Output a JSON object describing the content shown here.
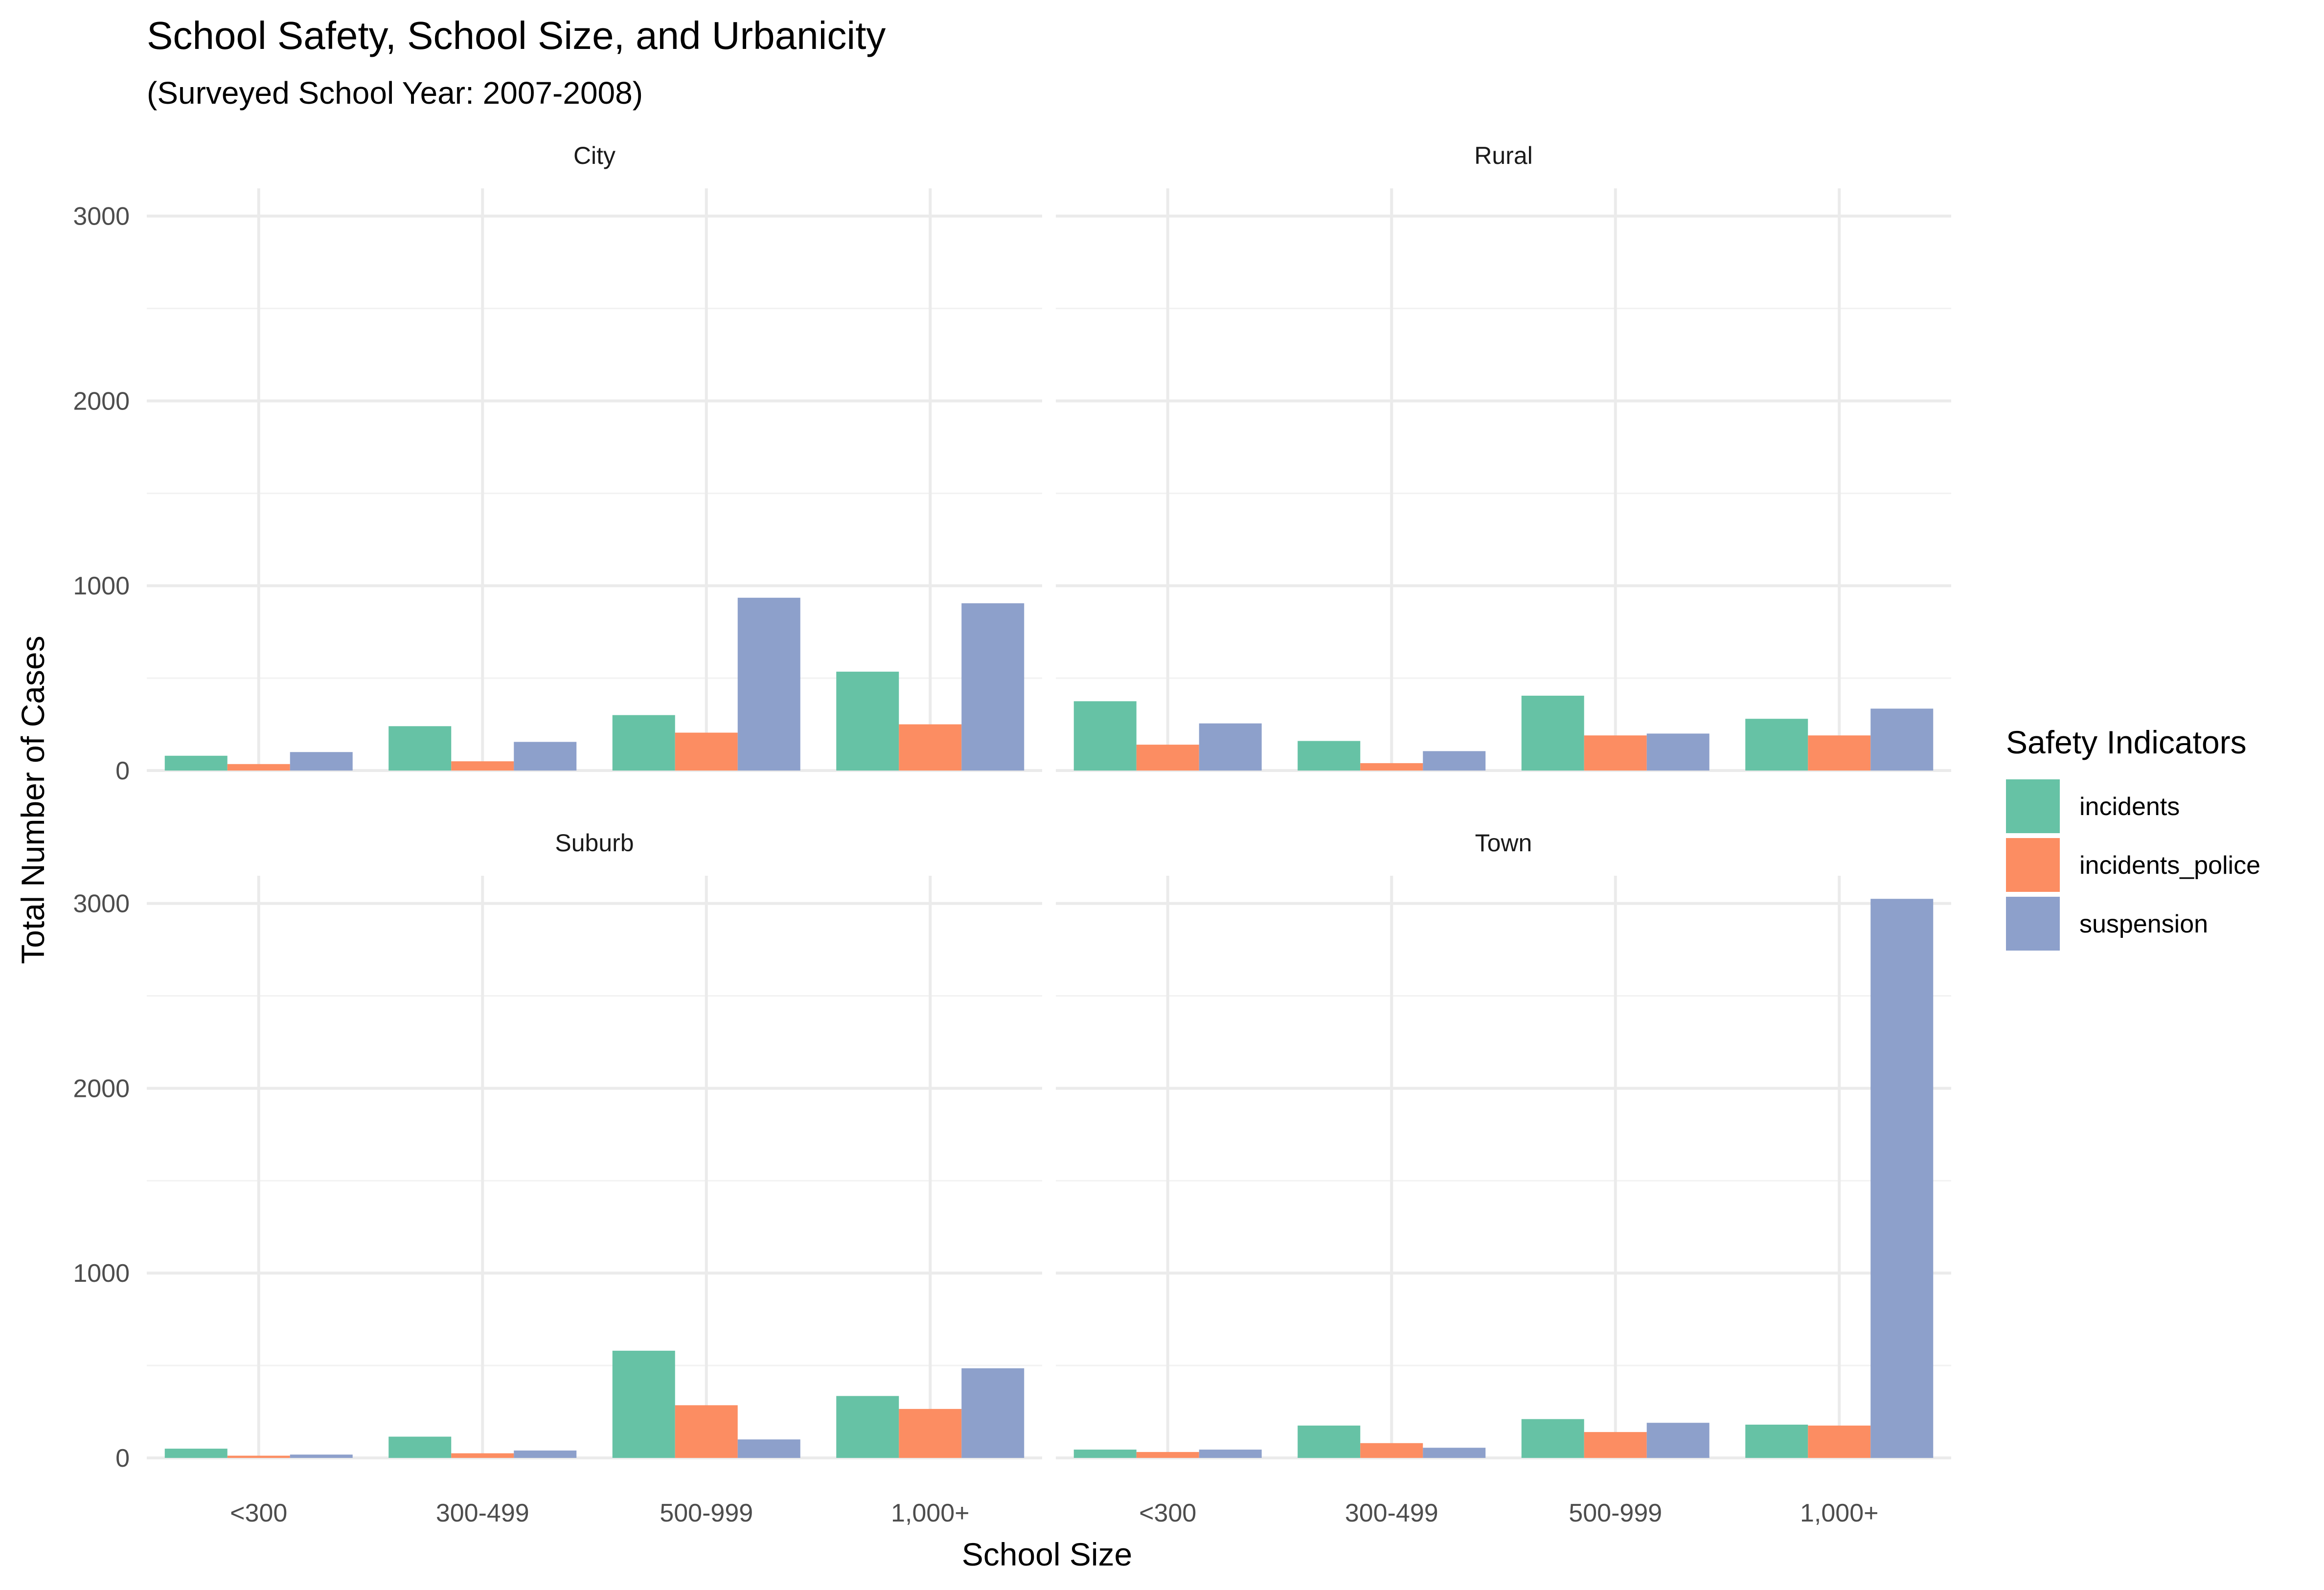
{
  "chart_data": {
    "type": "bar",
    "title": "School Safety, School Size, and Urbanicity",
    "subtitle": "(Surveyed School Year: 2007-2008)",
    "xlabel": "School Size",
    "ylabel": "Total Number of Cases",
    "categories": [
      "<300",
      "300-499",
      "500-999",
      "1,000+"
    ],
    "y_ticks": [
      "0",
      "1000",
      "2000",
      "3000"
    ],
    "ylim": [
      0,
      3150
    ],
    "grid": true,
    "legend": {
      "title": "Safety Indicators",
      "position": "right",
      "entries": [
        {
          "name": "incidents",
          "color": "#66c2a5"
        },
        {
          "name": "incidents_police",
          "color": "#fc8d62"
        },
        {
          "name": "suspension",
          "color": "#8da0cb"
        }
      ]
    },
    "facets": [
      {
        "name": "City",
        "series": [
          {
            "name": "incidents",
            "values": [
              80,
              240,
              300,
              535
            ]
          },
          {
            "name": "incidents_police",
            "values": [
              35,
              50,
              205,
              250
            ]
          },
          {
            "name": "suspension",
            "values": [
              100,
              155,
              935,
              905
            ]
          }
        ]
      },
      {
        "name": "Rural",
        "series": [
          {
            "name": "incidents",
            "values": [
              375,
              160,
              405,
              280
            ]
          },
          {
            "name": "incidents_police",
            "values": [
              140,
              40,
              190,
              190
            ]
          },
          {
            "name": "suspension",
            "values": [
              255,
              105,
              200,
              335
            ]
          }
        ]
      },
      {
        "name": "Suburb",
        "series": [
          {
            "name": "incidents",
            "values": [
              50,
              115,
              580,
              335
            ]
          },
          {
            "name": "incidents_police",
            "values": [
              12,
              25,
              285,
              265
            ]
          },
          {
            "name": "suspension",
            "values": [
              18,
              40,
              100,
              485
            ]
          }
        ]
      },
      {
        "name": "Town",
        "series": [
          {
            "name": "incidents",
            "values": [
              45,
              175,
              210,
              180
            ]
          },
          {
            "name": "incidents_police",
            "values": [
              32,
              80,
              140,
              175
            ]
          },
          {
            "name": "suspension",
            "values": [
              45,
              55,
              190,
              3025
            ]
          }
        ]
      }
    ]
  }
}
